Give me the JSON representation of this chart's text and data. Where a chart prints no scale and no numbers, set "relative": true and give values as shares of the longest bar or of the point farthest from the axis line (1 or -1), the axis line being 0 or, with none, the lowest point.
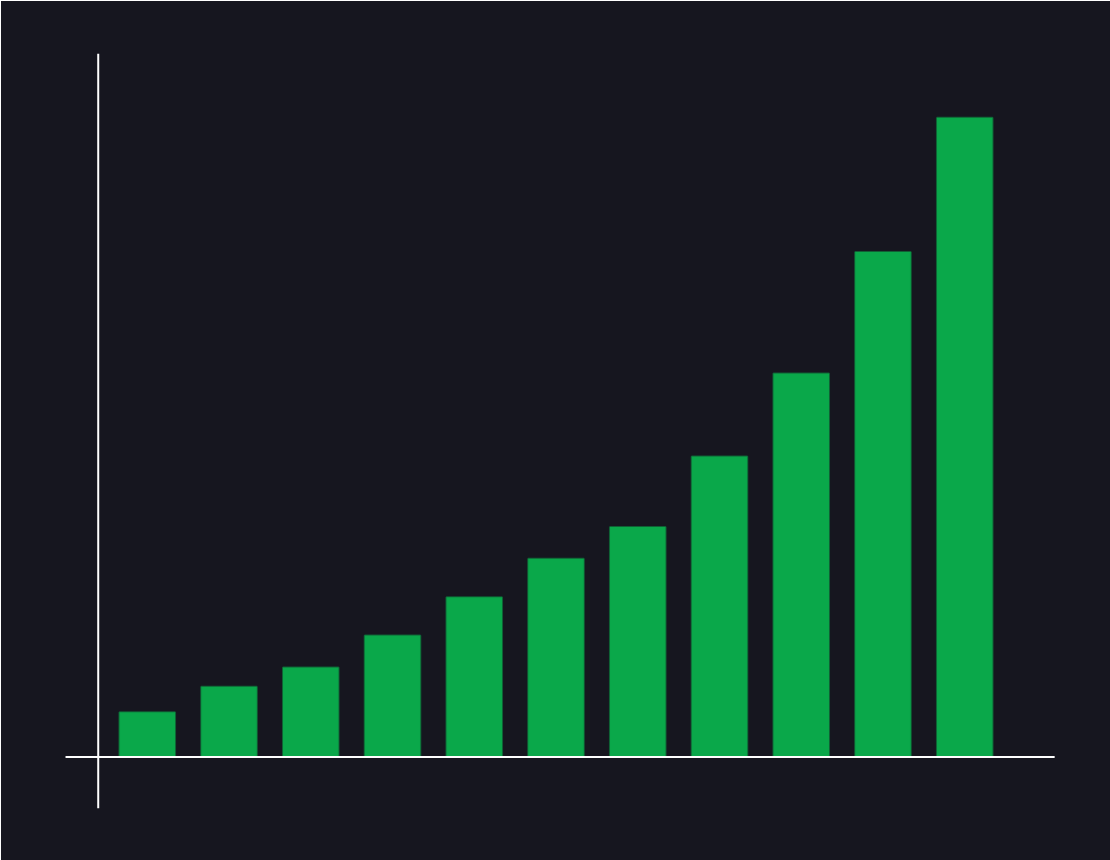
{
  "chart_data": {
    "type": "bar",
    "relative": true,
    "categories": [
      null,
      null,
      null,
      null,
      null,
      null,
      null,
      null,
      null,
      null,
      null
    ],
    "values": [
      0.07,
      0.11,
      0.14,
      0.19,
      0.25,
      0.31,
      0.36,
      0.47,
      0.6,
      0.79,
      1
    ],
    "color": "#0aa84a",
    "grid": false
  }
}
